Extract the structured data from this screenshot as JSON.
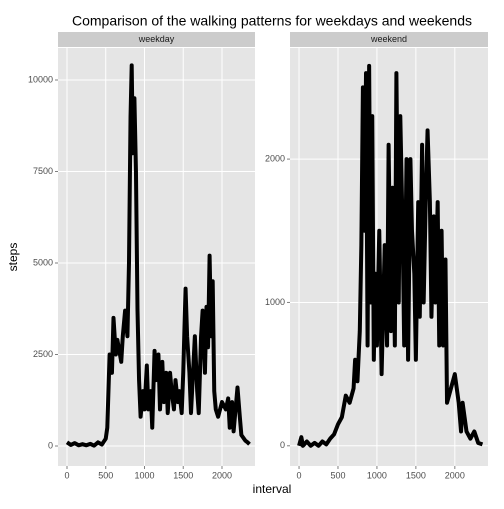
{
  "title": "Comparison of the walking patterns for weekdays and weekends",
  "x_label": "interval",
  "y_label": "steps",
  "chart_data": [
    {
      "type": "line",
      "facet": "weekday",
      "color": "#000000",
      "grid": true,
      "xlim": [
        -116,
        2426
      ],
      "ylim": [
        -546,
        10874
      ],
      "xticks": [
        0,
        500,
        1000,
        1500,
        2000
      ],
      "yticks": [
        0,
        2500,
        5000,
        7500,
        10000
      ],
      "x": [
        0,
        50,
        100,
        150,
        200,
        250,
        300,
        350,
        400,
        450,
        500,
        520,
        550,
        580,
        600,
        630,
        650,
        700,
        720,
        750,
        780,
        800,
        820,
        835,
        850,
        870,
        890,
        910,
        930,
        950,
        980,
        1000,
        1030,
        1050,
        1080,
        1100,
        1130,
        1150,
        1180,
        1200,
        1230,
        1250,
        1280,
        1300,
        1330,
        1350,
        1380,
        1400,
        1430,
        1450,
        1480,
        1500,
        1530,
        1550,
        1580,
        1600,
        1650,
        1680,
        1700,
        1730,
        1750,
        1780,
        1800,
        1820,
        1840,
        1860,
        1880,
        1900,
        1920,
        1950,
        2000,
        2050,
        2080,
        2100,
        2130,
        2150,
        2200,
        2230,
        2250,
        2300,
        2330,
        2355
      ],
      "values": [
        100,
        30,
        80,
        20,
        50,
        20,
        60,
        10,
        100,
        40,
        200,
        500,
        2500,
        2000,
        3500,
        2500,
        2900,
        2300,
        3000,
        3700,
        3000,
        5000,
        9000,
        10400,
        8000,
        9500,
        7500,
        3700,
        1800,
        800,
        1500,
        1000,
        2200,
        1000,
        1500,
        500,
        2600,
        1800,
        2500,
        1000,
        2300,
        1200,
        2000,
        900,
        2000,
        1500,
        1000,
        1800,
        1200,
        1500,
        900,
        2000,
        4300,
        3000,
        2000,
        900,
        3000,
        1500,
        900,
        3000,
        3700,
        2000,
        3800,
        2700,
        5200,
        3000,
        4500,
        1500,
        1000,
        800,
        1200,
        1000,
        1300,
        500,
        1200,
        400,
        1600,
        800,
        300,
        150,
        100,
        50
      ]
    },
    {
      "type": "line",
      "facet": "weekend",
      "color": "#000000",
      "grid": true,
      "xlim": [
        -116,
        2426
      ],
      "ylim": [
        -141,
        2775
      ],
      "xticks": [
        0,
        500,
        1000,
        1500,
        2000
      ],
      "yticks": [
        0,
        1000,
        2000
      ],
      "x": [
        0,
        30,
        50,
        100,
        150,
        200,
        250,
        300,
        350,
        400,
        450,
        500,
        550,
        600,
        650,
        700,
        720,
        750,
        780,
        800,
        820,
        840,
        860,
        880,
        900,
        920,
        940,
        960,
        980,
        1000,
        1030,
        1060,
        1100,
        1130,
        1150,
        1180,
        1200,
        1230,
        1250,
        1280,
        1300,
        1330,
        1350,
        1380,
        1400,
        1430,
        1450,
        1480,
        1500,
        1530,
        1550,
        1580,
        1600,
        1630,
        1650,
        1680,
        1700,
        1730,
        1750,
        1780,
        1800,
        1830,
        1850,
        1880,
        1900,
        1950,
        2000,
        2050,
        2080,
        2100,
        2150,
        2200,
        2250,
        2300,
        2355
      ],
      "values": [
        0,
        60,
        0,
        30,
        0,
        20,
        0,
        30,
        10,
        50,
        80,
        150,
        200,
        350,
        300,
        400,
        600,
        450,
        800,
        1400,
        2500,
        1500,
        2600,
        700,
        2650,
        1000,
        2300,
        600,
        1200,
        700,
        1500,
        500,
        1400,
        700,
        2100,
        800,
        1800,
        700,
        2600,
        1000,
        2300,
        1500,
        700,
        2000,
        600,
        2000,
        1500,
        1200,
        600,
        1700,
        900,
        2100,
        1000,
        1800,
        2200,
        1700,
        900,
        1600,
        1000,
        1700,
        700,
        1500,
        700,
        1300,
        300,
        400,
        500,
        300,
        100,
        300,
        100,
        50,
        100,
        20,
        10
      ]
    }
  ]
}
